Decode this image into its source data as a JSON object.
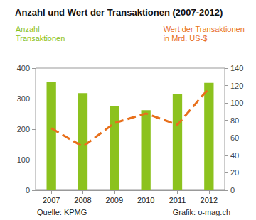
{
  "chart_data": {
    "type": "bar",
    "title": "Anzahl und Wert der Transaktionen (2007-2012)",
    "y_label": "Anzahl\nTransaktionen",
    "y2_label": "Wert der Transaktionen\nin Mrd. US-$",
    "annotations": [
      "Quelle: KPMG",
      "Grafik: o-mag.ch"
    ],
    "categories": [
      "2007",
      "2008",
      "2009",
      "2010",
      "2011",
      "2012"
    ],
    "series": [
      {
        "type": "bar",
        "color": "#8cc21e",
        "values": [
          355,
          318,
          275,
          262,
          316,
          352
        ]
      },
      {
        "type": "line",
        "axis": "y2",
        "color": "#e8701c",
        "line_style": "dashed",
        "values": [
          71,
          50,
          77,
          88,
          75,
          117
        ]
      }
    ],
    "ylim": [
      0,
      400
    ],
    "yticks": [
      0,
      100,
      200,
      300,
      400
    ],
    "y2lim": [
      0,
      140
    ],
    "y2ticks": [
      0,
      20,
      40,
      60,
      80,
      100,
      120,
      140
    ],
    "grid": false
  }
}
